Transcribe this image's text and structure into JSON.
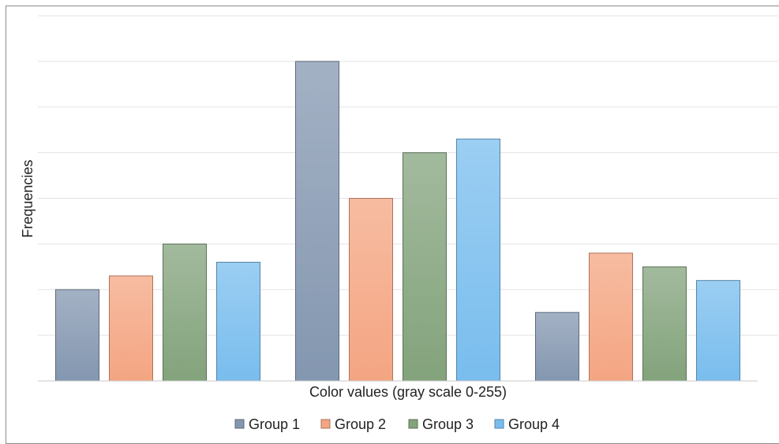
{
  "chart_data": {
    "type": "bar",
    "xlabel": "Color values (gray scale 0-255)",
    "ylabel": "Frequencies",
    "ylim": [
      0,
      8
    ],
    "gridlines": [
      1,
      2,
      3,
      4,
      5,
      6,
      7,
      8
    ],
    "grid": true,
    "legend_position": "bottom",
    "categories": [
      "",
      "",
      ""
    ],
    "series": [
      {
        "name": "Group 1",
        "values": [
          2.0,
          7.0,
          1.5
        ],
        "color": "#8497b0"
      },
      {
        "name": "Group 2",
        "values": [
          2.3,
          4.0,
          2.8
        ],
        "color": "#f4a582"
      },
      {
        "name": "Group 3",
        "values": [
          3.0,
          5.0,
          2.5
        ],
        "color": "#83a37c"
      },
      {
        "name": "Group 4",
        "values": [
          2.6,
          5.3,
          2.2
        ],
        "color": "#79bdee"
      }
    ]
  }
}
